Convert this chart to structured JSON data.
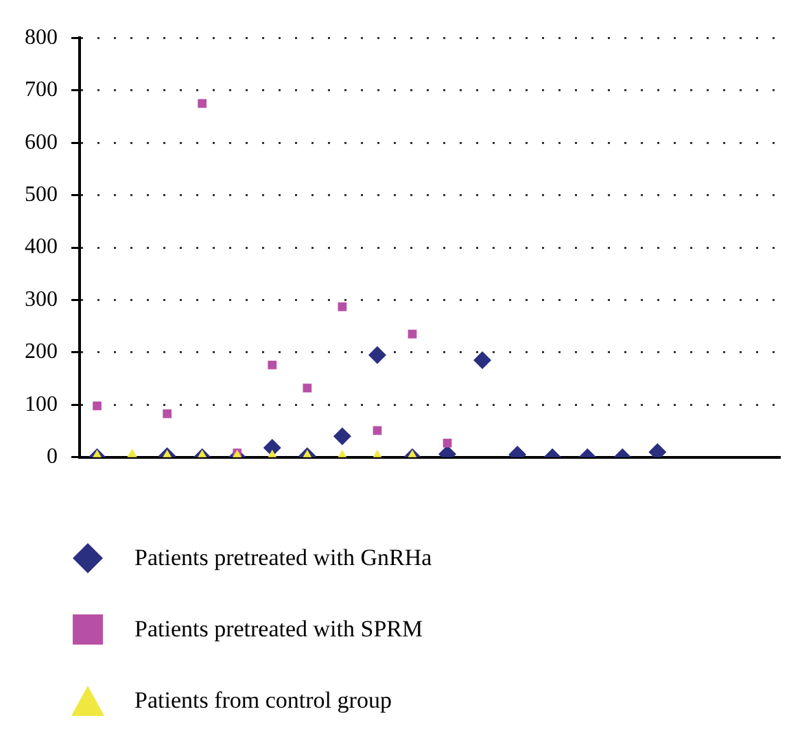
{
  "chart_data": {
    "type": "scatter",
    "categories": [
      null,
      null,
      null,
      null,
      null,
      null,
      null,
      null,
      null,
      null,
      null,
      null,
      null,
      null,
      null,
      null,
      null,
      null,
      null,
      null
    ],
    "series": [
      {
        "name": "Patients pretreated with GnRHa",
        "color": "#2b2f80",
        "marker": "diamond",
        "values": [
          0,
          null,
          2,
          0,
          0,
          18,
          2,
          40,
          195,
          0,
          6,
          185,
          5,
          0,
          0,
          0,
          10,
          null,
          null,
          null
        ]
      },
      {
        "name": "Patients pretreated with SPRM",
        "color": "#b84fa6",
        "marker": "square",
        "values": [
          98,
          null,
          83,
          675,
          8,
          176,
          132,
          287,
          51,
          235,
          27,
          null,
          null,
          null,
          null,
          null,
          null,
          null,
          null,
          null
        ]
      },
      {
        "name": "Patients from control group",
        "color": "#f0e840",
        "marker": "triangle",
        "values": [
          0,
          2,
          0,
          0,
          0,
          0,
          0,
          0,
          0,
          0,
          null,
          null,
          null,
          null,
          null,
          null,
          null,
          null,
          null,
          null
        ]
      }
    ],
    "ylim": [
      0,
      800
    ],
    "yticks": [
      0,
      100,
      200,
      300,
      400,
      500,
      600,
      700,
      800
    ],
    "grid": "y",
    "legend": "bottom",
    "tick_labels": "y"
  }
}
